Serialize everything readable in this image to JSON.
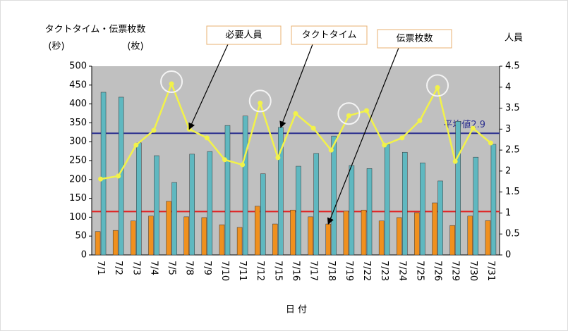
{
  "chart_data": {
    "type": "bar_line",
    "y_axis_title": "タクトタイム・伝票枚数",
    "y_unit_left": "(秒)",
    "y_unit_right": "(枚)",
    "y2_axis_title": "人員",
    "x_axis_title": "日 付",
    "categories": [
      "7/1",
      "7/2",
      "7/3",
      "7/4",
      "7/5",
      "7/8",
      "7/9",
      "7/10",
      "7/11",
      "7/12",
      "7/15",
      "7/16",
      "7/17",
      "7/18",
      "7/19",
      "7/22",
      "7/23",
      "7/24",
      "7/25",
      "7/26",
      "7/29",
      "7/30",
      "7/31"
    ],
    "series": [
      {
        "name": "タクトタイム",
        "type": "bar",
        "color": "#5fb8c0",
        "axis": "y",
        "values": [
          431,
          418,
          297,
          263,
          192,
          267,
          274,
          343,
          368,
          215,
          338,
          235,
          269,
          315,
          237,
          229,
          293,
          272,
          244,
          196,
          354,
          259,
          293
        ]
      },
      {
        "name": "伝票枚数",
        "type": "bar",
        "color": "#f0901e",
        "axis": "y",
        "values": [
          62,
          65,
          90,
          103,
          142,
          101,
          99,
          80,
          73,
          129,
          82,
          119,
          101,
          82,
          116,
          119,
          90,
          99,
          112,
          138,
          78,
          103,
          91
        ]
      },
      {
        "name": "必要人員",
        "type": "line",
        "color": "#f2f24a",
        "axis": "y2",
        "values": [
          1.81,
          1.88,
          2.62,
          2.97,
          4.08,
          3.0,
          2.79,
          2.27,
          2.15,
          3.62,
          2.32,
          3.37,
          3.02,
          2.5,
          3.32,
          3.44,
          2.62,
          2.79,
          3.2,
          3.99,
          2.23,
          3.02,
          2.67
        ]
      }
    ],
    "reference_lines": [
      {
        "value": 2.9,
        "axis": "y2",
        "color": "#2b2f8f",
        "label": "平均値2.9"
      },
      {
        "value": 115,
        "axis": "y",
        "color": "#e02020"
      }
    ],
    "annotations": [
      {
        "series": 2,
        "index": 5
      },
      {
        "series": 0,
        "index": 10
      },
      {
        "series": 1,
        "index": 13
      }
    ],
    "highlighted_points": [
      4,
      9,
      14,
      19
    ],
    "ylim": [
      0,
      500
    ],
    "yticks": [
      0,
      50,
      100,
      150,
      200,
      250,
      300,
      350,
      400,
      450,
      500
    ],
    "y2lim": [
      0,
      4.5
    ],
    "y2ticks": [
      0,
      0.5,
      1,
      1.5,
      2,
      2.5,
      3,
      3.5,
      4,
      4.5
    ],
    "background": "#c0c0c0"
  }
}
